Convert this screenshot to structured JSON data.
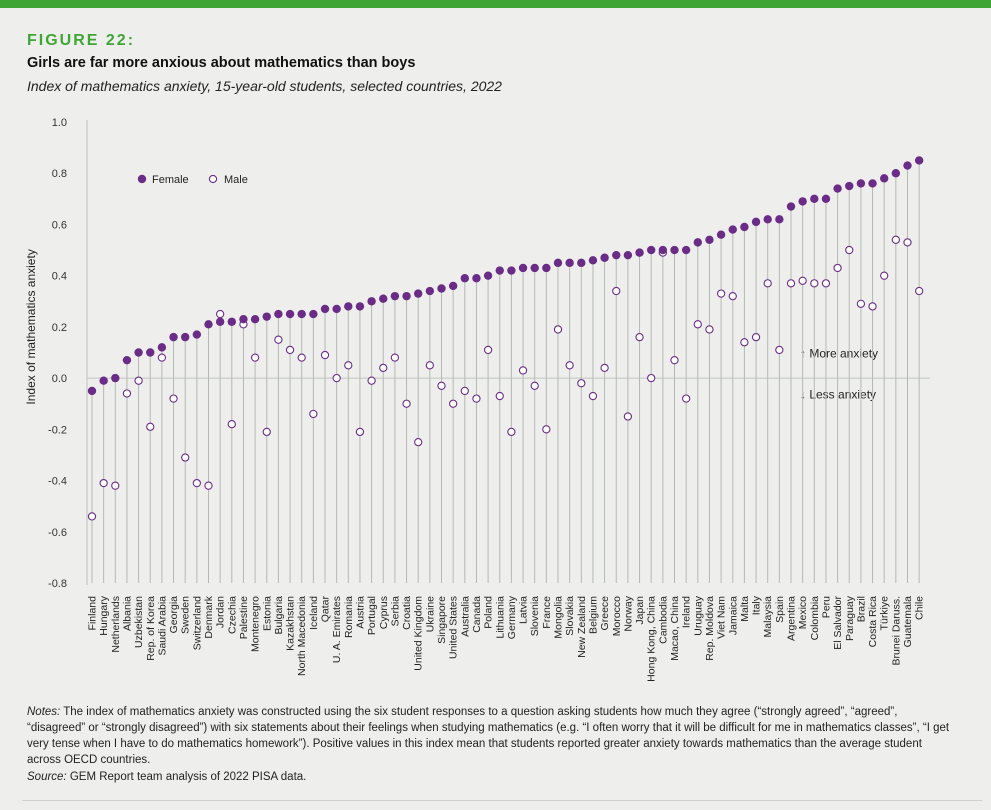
{
  "header": {
    "figure_label": "FIGURE 22:",
    "title": "Girls are far more anxious about mathematics than boys",
    "subtitle": "Index of mathematics anxiety, 15-year-old students, selected countries, 2022"
  },
  "colors": {
    "accent": "#3fa535",
    "female": "#6a2c86",
    "male_stroke": "#6a2c86",
    "stem": "#b5b8b2",
    "zero_line": "#c9ccc6",
    "axis_text": "#333333"
  },
  "footer": {
    "notes_label": "Notes:",
    "notes_text": "The index of mathematics anxiety was constructed using the six student responses to a question asking students how much they agree (“strongly agreed”, “agreed”, “disagreed” or “strongly disagreed”) with six statements about their feelings when studying mathematics (e.g. “I often worry that it will be difficult for me in mathematics classes”, “I get very tense when I have to do mathematics homework”). Positive values in this index mean that students reported greater anxiety towards mathematics than the average student across OECD countries.",
    "source_label": "Source:",
    "source_text": "GEM Report team analysis of 2022 PISA data."
  },
  "chart_data": {
    "type": "dot",
    "title": "Index of mathematics anxiety, 15-year-old students, selected countries, 2022",
    "xlabel": "",
    "ylabel": "Index of mathematics anxiety",
    "ylim": [
      -0.8,
      1.0
    ],
    "yticks": [
      "-0.8",
      "-0.6",
      "-0.4",
      "-0.2",
      "0.0",
      "0.2",
      "0.4",
      "0.6",
      "0.8",
      "1.0"
    ],
    "grid": false,
    "legend": {
      "position": "top-left",
      "female_label": "Female",
      "male_label": "Male"
    },
    "annotations": {
      "more": "↑ More anxiety",
      "less": "↓ Less anxiety"
    },
    "categories": [
      "Finland",
      "Hungary",
      "Netherlands",
      "Albania",
      "Uzbekistan",
      "Rep. of Korea",
      "Saudi Arabia",
      "Georgia",
      "Sweden",
      "Switzerland",
      "Denmark",
      "Jordan",
      "Czechia",
      "Palestine",
      "Montenegro",
      "Estonia",
      "Bulgaria",
      "Kazakhstan",
      "North Macedonia",
      "Iceland",
      "Qatar",
      "U. A. Emirates",
      "Romania",
      "Austria",
      "Portugal",
      "Cyprus",
      "Serbia",
      "Croatia",
      "United Kingdom",
      "Ukraine",
      "Singapore",
      "United States",
      "Australia",
      "Canada",
      "Poland",
      "Lithuania",
      "Germany",
      "Latvia",
      "Slovenia",
      "France",
      "Mongolia",
      "Slovakia",
      "New Zealand",
      "Belgium",
      "Greece",
      "Morocco",
      "Norway",
      "Japan",
      "Hong Kong, China",
      "Cambodia",
      "Macao, China",
      "Ireland",
      "Uruguay",
      "Rep. Moldova",
      "Viet Nam",
      "Jamaica",
      "Malta",
      "Italy",
      "Malaysia",
      "Spain",
      "Argentina",
      "Mexico",
      "Colombia",
      "Peru",
      "El Salvador",
      "Paraguay",
      "Brazil",
      "Costa Rica",
      "Türkiye",
      "Brunei Daruss.",
      "Guatemala",
      "Chile"
    ],
    "series": [
      {
        "name": "Female",
        "values": [
          -0.05,
          -0.01,
          0.0,
          0.07,
          0.1,
          0.1,
          0.12,
          0.16,
          0.16,
          0.17,
          0.21,
          0.22,
          0.22,
          0.23,
          0.23,
          0.24,
          0.25,
          0.25,
          0.25,
          0.25,
          0.27,
          0.27,
          0.28,
          0.28,
          0.3,
          0.31,
          0.32,
          0.32,
          0.33,
          0.34,
          0.35,
          0.36,
          0.39,
          0.39,
          0.4,
          0.42,
          0.42,
          0.43,
          0.43,
          0.43,
          0.45,
          0.45,
          0.45,
          0.46,
          0.47,
          0.48,
          0.48,
          0.49,
          0.5,
          0.5,
          0.5,
          0.5,
          0.53,
          0.54,
          0.56,
          0.58,
          0.59,
          0.61,
          0.62,
          0.62,
          0.67,
          0.69,
          0.7,
          0.7,
          0.74,
          0.75,
          0.76,
          0.76,
          0.78,
          0.8,
          0.83,
          0.85
        ]
      },
      {
        "name": "Male",
        "values": [
          -0.54,
          -0.41,
          -0.42,
          -0.06,
          -0.01,
          -0.19,
          0.08,
          -0.08,
          -0.31,
          -0.41,
          -0.42,
          0.25,
          -0.18,
          0.21,
          0.08,
          -0.21,
          0.15,
          0.11,
          0.08,
          -0.14,
          0.09,
          0.0,
          0.05,
          -0.21,
          -0.01,
          0.04,
          0.08,
          -0.1,
          -0.25,
          0.05,
          -0.03,
          -0.1,
          -0.05,
          -0.08,
          0.11,
          -0.07,
          -0.21,
          0.03,
          -0.03,
          -0.2,
          0.19,
          0.05,
          -0.02,
          -0.07,
          0.04,
          0.34,
          -0.15,
          0.16,
          0.0,
          0.49,
          0.07,
          -0.08,
          0.21,
          0.19,
          0.33,
          0.32,
          0.14,
          0.16,
          0.37,
          0.11,
          0.37,
          0.38,
          0.37,
          0.37,
          0.43,
          0.5,
          0.29,
          0.28,
          0.4,
          0.54,
          0.53,
          0.34
        ]
      }
    ]
  }
}
